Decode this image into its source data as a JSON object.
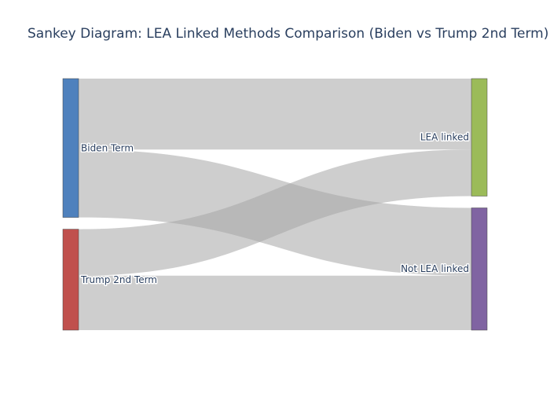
{
  "title": "Sankey Diagram: LEA Linked Methods Comparison (Biden vs Trump 2nd Term)",
  "colors": {
    "link": "rgba(165,165,165,0.55)",
    "node_outline": "#444444"
  },
  "nodes": [
    {
      "id": "biden",
      "label": "Biden Term",
      "color": "#4f81bd",
      "side": "left"
    },
    {
      "id": "trump",
      "label": "Trump 2nd Term",
      "color": "#c0504d",
      "side": "left"
    },
    {
      "id": "lea",
      "label": "LEA linked",
      "color": "#9bbb59",
      "side": "right"
    },
    {
      "id": "notlea",
      "label": "Not LEA linked",
      "color": "#8064a2",
      "side": "right"
    }
  ],
  "links": [
    {
      "source": "biden",
      "target": "lea",
      "value": 0.9
    },
    {
      "source": "biden",
      "target": "notlea",
      "value": 0.86
    },
    {
      "source": "trump",
      "target": "lea",
      "value": 0.59
    },
    {
      "source": "trump",
      "target": "notlea",
      "value": 0.69
    }
  ]
}
